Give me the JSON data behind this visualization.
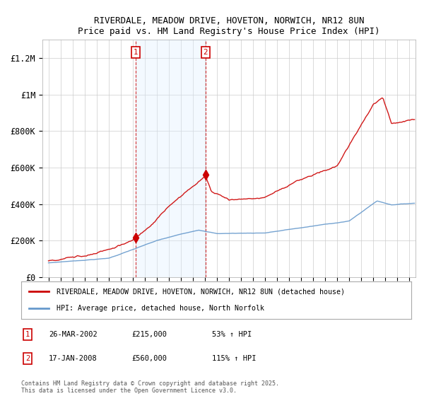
{
  "title_line1": "RIVERDALE, MEADOW DRIVE, HOVETON, NORWICH, NR12 8UN",
  "title_line2": "Price paid vs. HM Land Registry's House Price Index (HPI)",
  "ylabel_ticks": [
    "£0",
    "£200K",
    "£400K",
    "£600K",
    "£800K",
    "£1M",
    "£1.2M"
  ],
  "ytick_values": [
    0,
    200000,
    400000,
    600000,
    800000,
    1000000,
    1200000
  ],
  "ylim": [
    0,
    1300000
  ],
  "xlim_start": 1994.5,
  "xlim_end": 2025.5,
  "sale1_yr": 2002.23,
  "sale1_price": 215000,
  "sale2_yr": 2008.04,
  "sale2_price": 560000,
  "legend_line1": "RIVERDALE, MEADOW DRIVE, HOVETON, NORWICH, NR12 8UN (detached house)",
  "legend_line2": "HPI: Average price, detached house, North Norfolk",
  "table_row1": "1    26-MAR-2002         £215,000        53% ↑ HPI",
  "table_row2": "2    17-JAN-2008         £560,000       115% ↑ HPI",
  "footer": "Contains HM Land Registry data © Crown copyright and database right 2025.\nThis data is licensed under the Open Government Licence v3.0.",
  "sale_color": "#cc0000",
  "hpi_color": "#6699cc",
  "highlight_color": "#ddeeff",
  "bg_color": "#ffffff",
  "grid_color": "#cccccc"
}
